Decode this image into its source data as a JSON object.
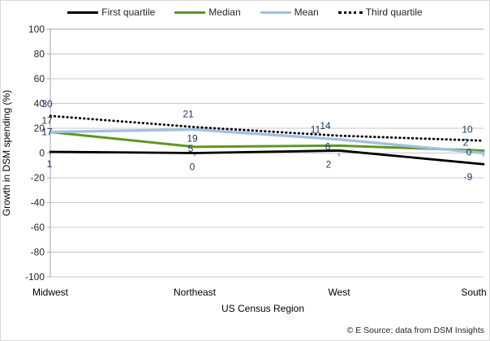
{
  "chart_data": {
    "type": "line",
    "title": "",
    "categories": [
      "Midwest",
      "Northeast",
      "West",
      "South"
    ],
    "series": [
      {
        "name": "First quartile",
        "values": [
          1,
          0,
          2,
          -9
        ],
        "color": "#000000",
        "dash": "solid"
      },
      {
        "name": "Median",
        "values": [
          17,
          5,
          6,
          2
        ],
        "color": "#5F9623",
        "dash": "solid"
      },
      {
        "name": "Mean",
        "values": [
          17,
          19,
          11,
          0
        ],
        "color": "#A3C0E0",
        "dash": "solid"
      },
      {
        "name": "Third quartile",
        "values": [
          30,
          21,
          14,
          10
        ],
        "color": "#000000",
        "dash": "dotted"
      }
    ],
    "xlabel": "US Census Region",
    "ylabel": "Growth in DSM spending (%)",
    "ylim": [
      -100,
      100
    ],
    "ytick_step": 20,
    "grid": true,
    "legend_position": "top",
    "data_labels_shown": true,
    "data_label_color": "#1F3864",
    "label_offsets": [
      {
        "dx": [
          -1,
          -3,
          -13,
          -19
        ],
        "dy": [
          19,
          21,
          21,
          20
        ]
      },
      {
        "dx": [
          -4,
          -5,
          -14,
          -22
        ],
        "dy": [
          4,
          6,
          5,
          -6
        ]
      },
      {
        "dx": [
          -4,
          -3,
          -29,
          -18
        ],
        "dy": [
          -10,
          15,
          -8,
          3
        ]
      },
      {
        "dx": [
          -4,
          -8,
          -17,
          -20
        ],
        "dy": [
          -11,
          -12,
          -8,
          -10
        ]
      }
    ],
    "colors": {
      "grid": "#C9C9C9",
      "axis": "#A6A6A6",
      "cat_tick": "#595959",
      "tick_text": "#262626",
      "title_text": "#000000"
    }
  },
  "footer": {
    "credit": "© E Source; data from DSM Insights"
  }
}
